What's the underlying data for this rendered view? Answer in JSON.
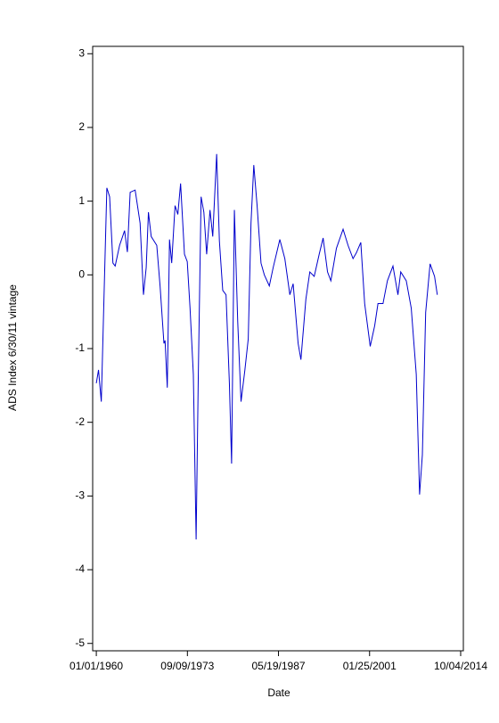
{
  "chart_data": {
    "type": "line",
    "xlabel": "Date",
    "ylabel": "ADS Index 6/30/11 vintage",
    "color": "#0000cc",
    "x": [
      "1960-01-01",
      "1960-05-01",
      "1960-10-01",
      "1961-03-01",
      "1961-08-01",
      "1962-01-01",
      "1962-07-01",
      "1962-11-01",
      "1963-07-01",
      "1964-04-01",
      "1964-09-01",
      "1965-02-01",
      "1965-11-01",
      "1966-08-01",
      "1967-02-01",
      "1967-07-01",
      "1967-11-01",
      "1968-04-01",
      "1969-02-01",
      "1969-08-01",
      "1970-03-01",
      "1970-05-01",
      "1970-09-01",
      "1971-01-01",
      "1971-05-01",
      "1971-11-01",
      "1972-04-01",
      "1972-09-01",
      "1973-04-01",
      "1973-09-01",
      "1974-02-01",
      "1974-08-01",
      "1975-01-01",
      "1975-05-01",
      "1975-10-01",
      "1976-03-01",
      "1976-08-01",
      "1977-02-01",
      "1977-07-01",
      "1978-02-01",
      "1978-07-01",
      "1979-01-01",
      "1979-07-01",
      "1980-01-01",
      "1980-05-01",
      "1980-10-01",
      "1981-04-01",
      "1981-10-01",
      "1982-05-01",
      "1982-11-01",
      "1983-04-01",
      "1983-09-01",
      "1984-03-01",
      "1984-10-01",
      "1985-04-01",
      "1986-01-01",
      "1986-08-01",
      "1987-08-01",
      "1988-05-01",
      "1989-02-01",
      "1989-08-01",
      "1990-05-01",
      "1990-10-01",
      "1991-07-01",
      "1992-02-01",
      "1992-10-01",
      "1993-07-01",
      "1994-02-01",
      "1994-10-01",
      "1995-04-01",
      "1996-02-01",
      "1997-02-01",
      "1997-11-01",
      "1998-08-01",
      "1999-02-01",
      "1999-10-01",
      "2000-05-01",
      "2001-03-01",
      "2001-11-01",
      "2002-05-01",
      "2003-02-01",
      "2003-10-01",
      "2004-08-01",
      "2005-05-01",
      "2005-10-01",
      "2006-08-01",
      "2007-05-01",
      "2008-02-01",
      "2008-08-01",
      "2009-01-01",
      "2009-07-01",
      "2010-03-01",
      "2010-11-01",
      "2011-04-01"
    ],
    "values": [
      -1.47,
      -1.29,
      -1.72,
      -0.27,
      1.18,
      1.06,
      0.16,
      0.12,
      0.4,
      0.6,
      0.31,
      1.12,
      1.15,
      0.7,
      -0.27,
      0.1,
      0.85,
      0.52,
      0.4,
      -0.15,
      -0.93,
      -0.89,
      -1.53,
      0.48,
      0.16,
      0.94,
      0.82,
      1.24,
      0.28,
      0.18,
      -0.45,
      -1.35,
      -3.59,
      -1.35,
      1.06,
      0.85,
      0.28,
      0.88,
      0.52,
      1.64,
      0.46,
      -0.21,
      -0.27,
      -1.47,
      -2.56,
      0.88,
      -0.63,
      -1.72,
      -1.29,
      -0.87,
      0.7,
      1.49,
      0.94,
      0.16,
      0.0,
      -0.15,
      0.1,
      0.48,
      0.22,
      -0.27,
      -0.12,
      -0.93,
      -1.15,
      -0.33,
      0.04,
      -0.02,
      0.28,
      0.5,
      0.04,
      -0.08,
      0.36,
      0.62,
      0.4,
      0.22,
      0.3,
      0.44,
      -0.39,
      -0.97,
      -0.69,
      -0.39,
      -0.39,
      -0.08,
      0.12,
      -0.27,
      0.04,
      -0.08,
      -0.45,
      -1.35,
      -2.98,
      -2.44,
      -0.51,
      0.15,
      -0.02,
      -0.27
    ],
    "xlim": [
      "1959-06-15",
      "2015-03-01"
    ],
    "xticks": [
      {
        "value": "1960-01-01",
        "label": "01/01/1960"
      },
      {
        "value": "1973-09-09",
        "label": "09/09/1973"
      },
      {
        "value": "1987-05-19",
        "label": "05/19/1987"
      },
      {
        "value": "2001-01-25",
        "label": "01/25/2001"
      },
      {
        "value": "2014-10-04",
        "label": "10/04/2014"
      }
    ],
    "ylim": [
      -5.1,
      3.1
    ],
    "yticks": [
      -5,
      -4,
      -3,
      -2,
      -1,
      0,
      1,
      2,
      3
    ]
  }
}
